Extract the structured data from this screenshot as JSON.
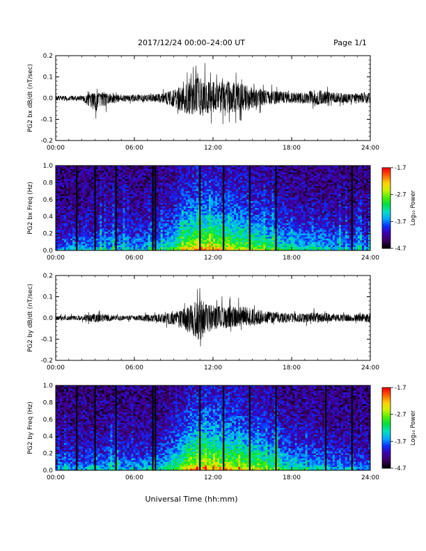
{
  "header": {
    "title": "2017/12/24  00:00–24:00 UT",
    "page": "Page 1/1"
  },
  "footer": {
    "xlabel": "Universal Time (hh:mm)"
  },
  "colorbar": {
    "label": "Log₁₀ Power",
    "ticks": [
      "-1.7",
      "-2.7",
      "-3.7",
      "-4.7"
    ],
    "colors": [
      "#000000",
      "#3a0060",
      "#3d00b0",
      "#0a30ff",
      "#00a8ff",
      "#00e0c0",
      "#00e040",
      "#50f000",
      "#d0f000",
      "#ffd000",
      "#ff6000",
      "#ff0000"
    ]
  },
  "chart_data": [
    {
      "id": "bx-waveform",
      "type": "line",
      "title": "",
      "xlabel": "",
      "ylabel": "PG2 bx dB/dt (nT/sec)",
      "xlim": [
        0,
        24
      ],
      "ylim": [
        -0.2,
        0.2
      ],
      "xticks": [
        "00:00",
        "06:00",
        "12:00",
        "18:00",
        "24:00"
      ],
      "yticks": [
        "0.2",
        "0.1",
        "0.0",
        "-0.1",
        "-0.2"
      ],
      "amplitude_envelope": {
        "x": [
          0,
          2,
          3,
          4,
          5,
          6,
          7,
          8,
          9,
          10,
          11,
          12,
          13,
          14,
          15,
          16,
          17,
          18,
          19,
          20,
          21,
          22,
          23,
          24
        ],
        "upper": [
          0.02,
          0.02,
          0.05,
          0.04,
          0.02,
          0.03,
          0.03,
          0.04,
          0.07,
          0.13,
          0.19,
          0.14,
          0.14,
          0.13,
          0.1,
          0.07,
          0.06,
          0.05,
          0.05,
          0.08,
          0.05,
          0.04,
          0.04,
          0.05
        ],
        "lower": [
          -0.02,
          -0.02,
          -0.12,
          -0.06,
          -0.03,
          -0.03,
          -0.03,
          -0.04,
          -0.08,
          -0.14,
          -0.15,
          -0.12,
          -0.13,
          -0.12,
          -0.09,
          -0.06,
          -0.05,
          -0.04,
          -0.05,
          -0.06,
          -0.04,
          -0.04,
          -0.04,
          -0.05
        ]
      }
    },
    {
      "id": "bx-spectrogram",
      "type": "heatmap",
      "title": "",
      "xlabel": "",
      "ylabel": "PG2 bx Freq (Hz)",
      "zlabel": "Log₁₀ Power",
      "xlim": [
        0,
        24
      ],
      "ylim": [
        0,
        1.0
      ],
      "zlim": [
        -4.7,
        -1.7
      ],
      "xticks": [
        "00:00",
        "06:00",
        "12:00",
        "18:00",
        "24:00"
      ],
      "yticks": [
        "1.0",
        "0.8",
        "0.6",
        "0.4",
        "0.2",
        "0.0"
      ],
      "data_gaps_hours": [
        1.6,
        3.0,
        4.6,
        7.4,
        7.6,
        11.0,
        12.8,
        14.8,
        16.8,
        22.6
      ],
      "low_freq_activity_profile": {
        "x": [
          0,
          2,
          4,
          6,
          8,
          9,
          10,
          11,
          12,
          13,
          14,
          15,
          16,
          17,
          18,
          19,
          20,
          21,
          22,
          24
        ],
        "intensity": [
          0.3,
          0.35,
          0.4,
          0.35,
          0.45,
          0.6,
          0.85,
          0.95,
          0.9,
          0.85,
          0.8,
          0.75,
          0.65,
          0.55,
          0.5,
          0.45,
          0.45,
          0.4,
          0.35,
          0.3
        ]
      }
    },
    {
      "id": "by-waveform",
      "type": "line",
      "title": "",
      "xlabel": "",
      "ylabel": "PG2 by dB/dt (nT/sec)",
      "xlim": [
        0,
        24
      ],
      "ylim": [
        -0.2,
        0.2
      ],
      "xticks": [
        "00:00",
        "06:00",
        "12:00",
        "18:00",
        "24:00"
      ],
      "yticks": [
        "0.2",
        "0.1",
        "0.0",
        "-0.1",
        "-0.2"
      ],
      "amplitude_envelope": {
        "x": [
          0,
          2,
          3,
          4,
          5,
          6,
          7,
          8,
          9,
          10,
          11,
          12,
          13,
          14,
          15,
          16,
          17,
          18,
          19,
          20,
          21,
          22,
          23,
          24
        ],
        "upper": [
          0.02,
          0.02,
          0.04,
          0.03,
          0.02,
          0.02,
          0.03,
          0.03,
          0.05,
          0.09,
          0.16,
          0.11,
          0.1,
          0.11,
          0.08,
          0.06,
          0.05,
          0.04,
          0.04,
          0.05,
          0.04,
          0.03,
          0.03,
          0.04
        ],
        "lower": [
          -0.02,
          -0.02,
          -0.04,
          -0.03,
          -0.02,
          -0.02,
          -0.03,
          -0.04,
          -0.06,
          -0.12,
          -0.19,
          -0.1,
          -0.09,
          -0.07,
          -0.06,
          -0.05,
          -0.04,
          -0.04,
          -0.04,
          -0.04,
          -0.03,
          -0.03,
          -0.03,
          -0.04
        ]
      }
    },
    {
      "id": "by-spectrogram",
      "type": "heatmap",
      "title": "",
      "xlabel": "",
      "ylabel": "PG2 by Freq (Hz)",
      "zlabel": "Log₁₀ Power",
      "xlim": [
        0,
        24
      ],
      "ylim": [
        0,
        1.0
      ],
      "zlim": [
        -4.7,
        -1.7
      ],
      "xticks": [
        "00:00",
        "06:00",
        "12:00",
        "18:00",
        "24:00"
      ],
      "yticks": [
        "1.0",
        "0.8",
        "0.6",
        "0.4",
        "0.2",
        "0.0"
      ],
      "data_gaps_hours": [
        1.6,
        3.0,
        4.6,
        7.4,
        7.6,
        11.0,
        12.8,
        14.8,
        16.8,
        20.6,
        22.6
      ],
      "low_freq_activity_profile": {
        "x": [
          0,
          2,
          4,
          6,
          8,
          9,
          10,
          11,
          12,
          13,
          14,
          15,
          16,
          17,
          18,
          19,
          20,
          21,
          22,
          24
        ],
        "intensity": [
          0.3,
          0.35,
          0.4,
          0.35,
          0.45,
          0.6,
          0.85,
          0.95,
          0.95,
          0.9,
          0.85,
          0.8,
          0.7,
          0.6,
          0.5,
          0.45,
          0.45,
          0.4,
          0.35,
          0.3
        ]
      }
    }
  ]
}
